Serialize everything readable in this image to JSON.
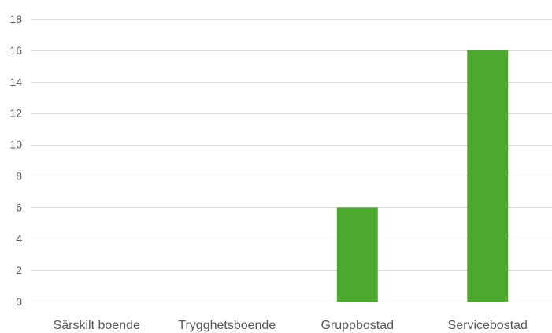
{
  "chart_data": {
    "type": "bar",
    "title": "",
    "xlabel": "",
    "ylabel": "",
    "categories": [
      "Särskilt boende",
      "Trygghetsboende",
      "Gruppbostad",
      "Servicebostad"
    ],
    "series": [
      {
        "values": [
          0,
          0,
          6,
          16
        ],
        "color": "#4ea72e"
      }
    ],
    "ylim": [
      0,
      18
    ],
    "yticks": [
      0,
      2,
      4,
      6,
      8,
      10,
      12,
      14,
      16,
      18
    ],
    "grid": true,
    "legend": "none"
  }
}
